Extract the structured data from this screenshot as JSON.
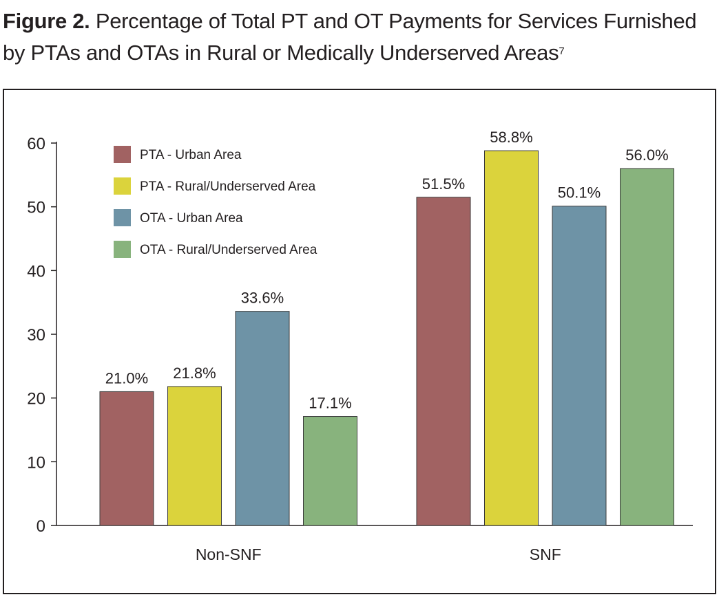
{
  "figure": {
    "lead": "Figure 2.",
    "title_line1": "Percentage of Total PT and OT Payments for Services Furnished",
    "title_line2": "by PTAs and OTAs in Rural or Medically Underserved Areas",
    "footnote_marker": "7"
  },
  "chart_data": {
    "type": "bar",
    "categories": [
      "Non-SNF",
      "SNF"
    ],
    "series": [
      {
        "name": "PTA - Urban Area",
        "color": "#a16262",
        "values": [
          21.0,
          51.5
        ],
        "labels": [
          "21.0%",
          "51.5%"
        ]
      },
      {
        "name": "PTA - Rural/Underserved Area",
        "color": "#dbd33c",
        "values": [
          21.8,
          58.8
        ],
        "labels": [
          "21.8%",
          "58.8%"
        ]
      },
      {
        "name": "OTA - Urban Area",
        "color": "#6e93a6",
        "values": [
          33.6,
          50.1
        ],
        "labels": [
          "33.6%",
          "50.1%"
        ]
      },
      {
        "name": "OTA - Rural/Underserved Area",
        "color": "#88b37d",
        "values": [
          17.1,
          56.0
        ],
        "labels": [
          "17.1%",
          "56.0%"
        ]
      }
    ],
    "yticks": [
      0,
      10,
      20,
      30,
      40,
      50,
      60
    ],
    "ylim": [
      0,
      60
    ],
    "legend_position": "top-left",
    "grid": false
  }
}
